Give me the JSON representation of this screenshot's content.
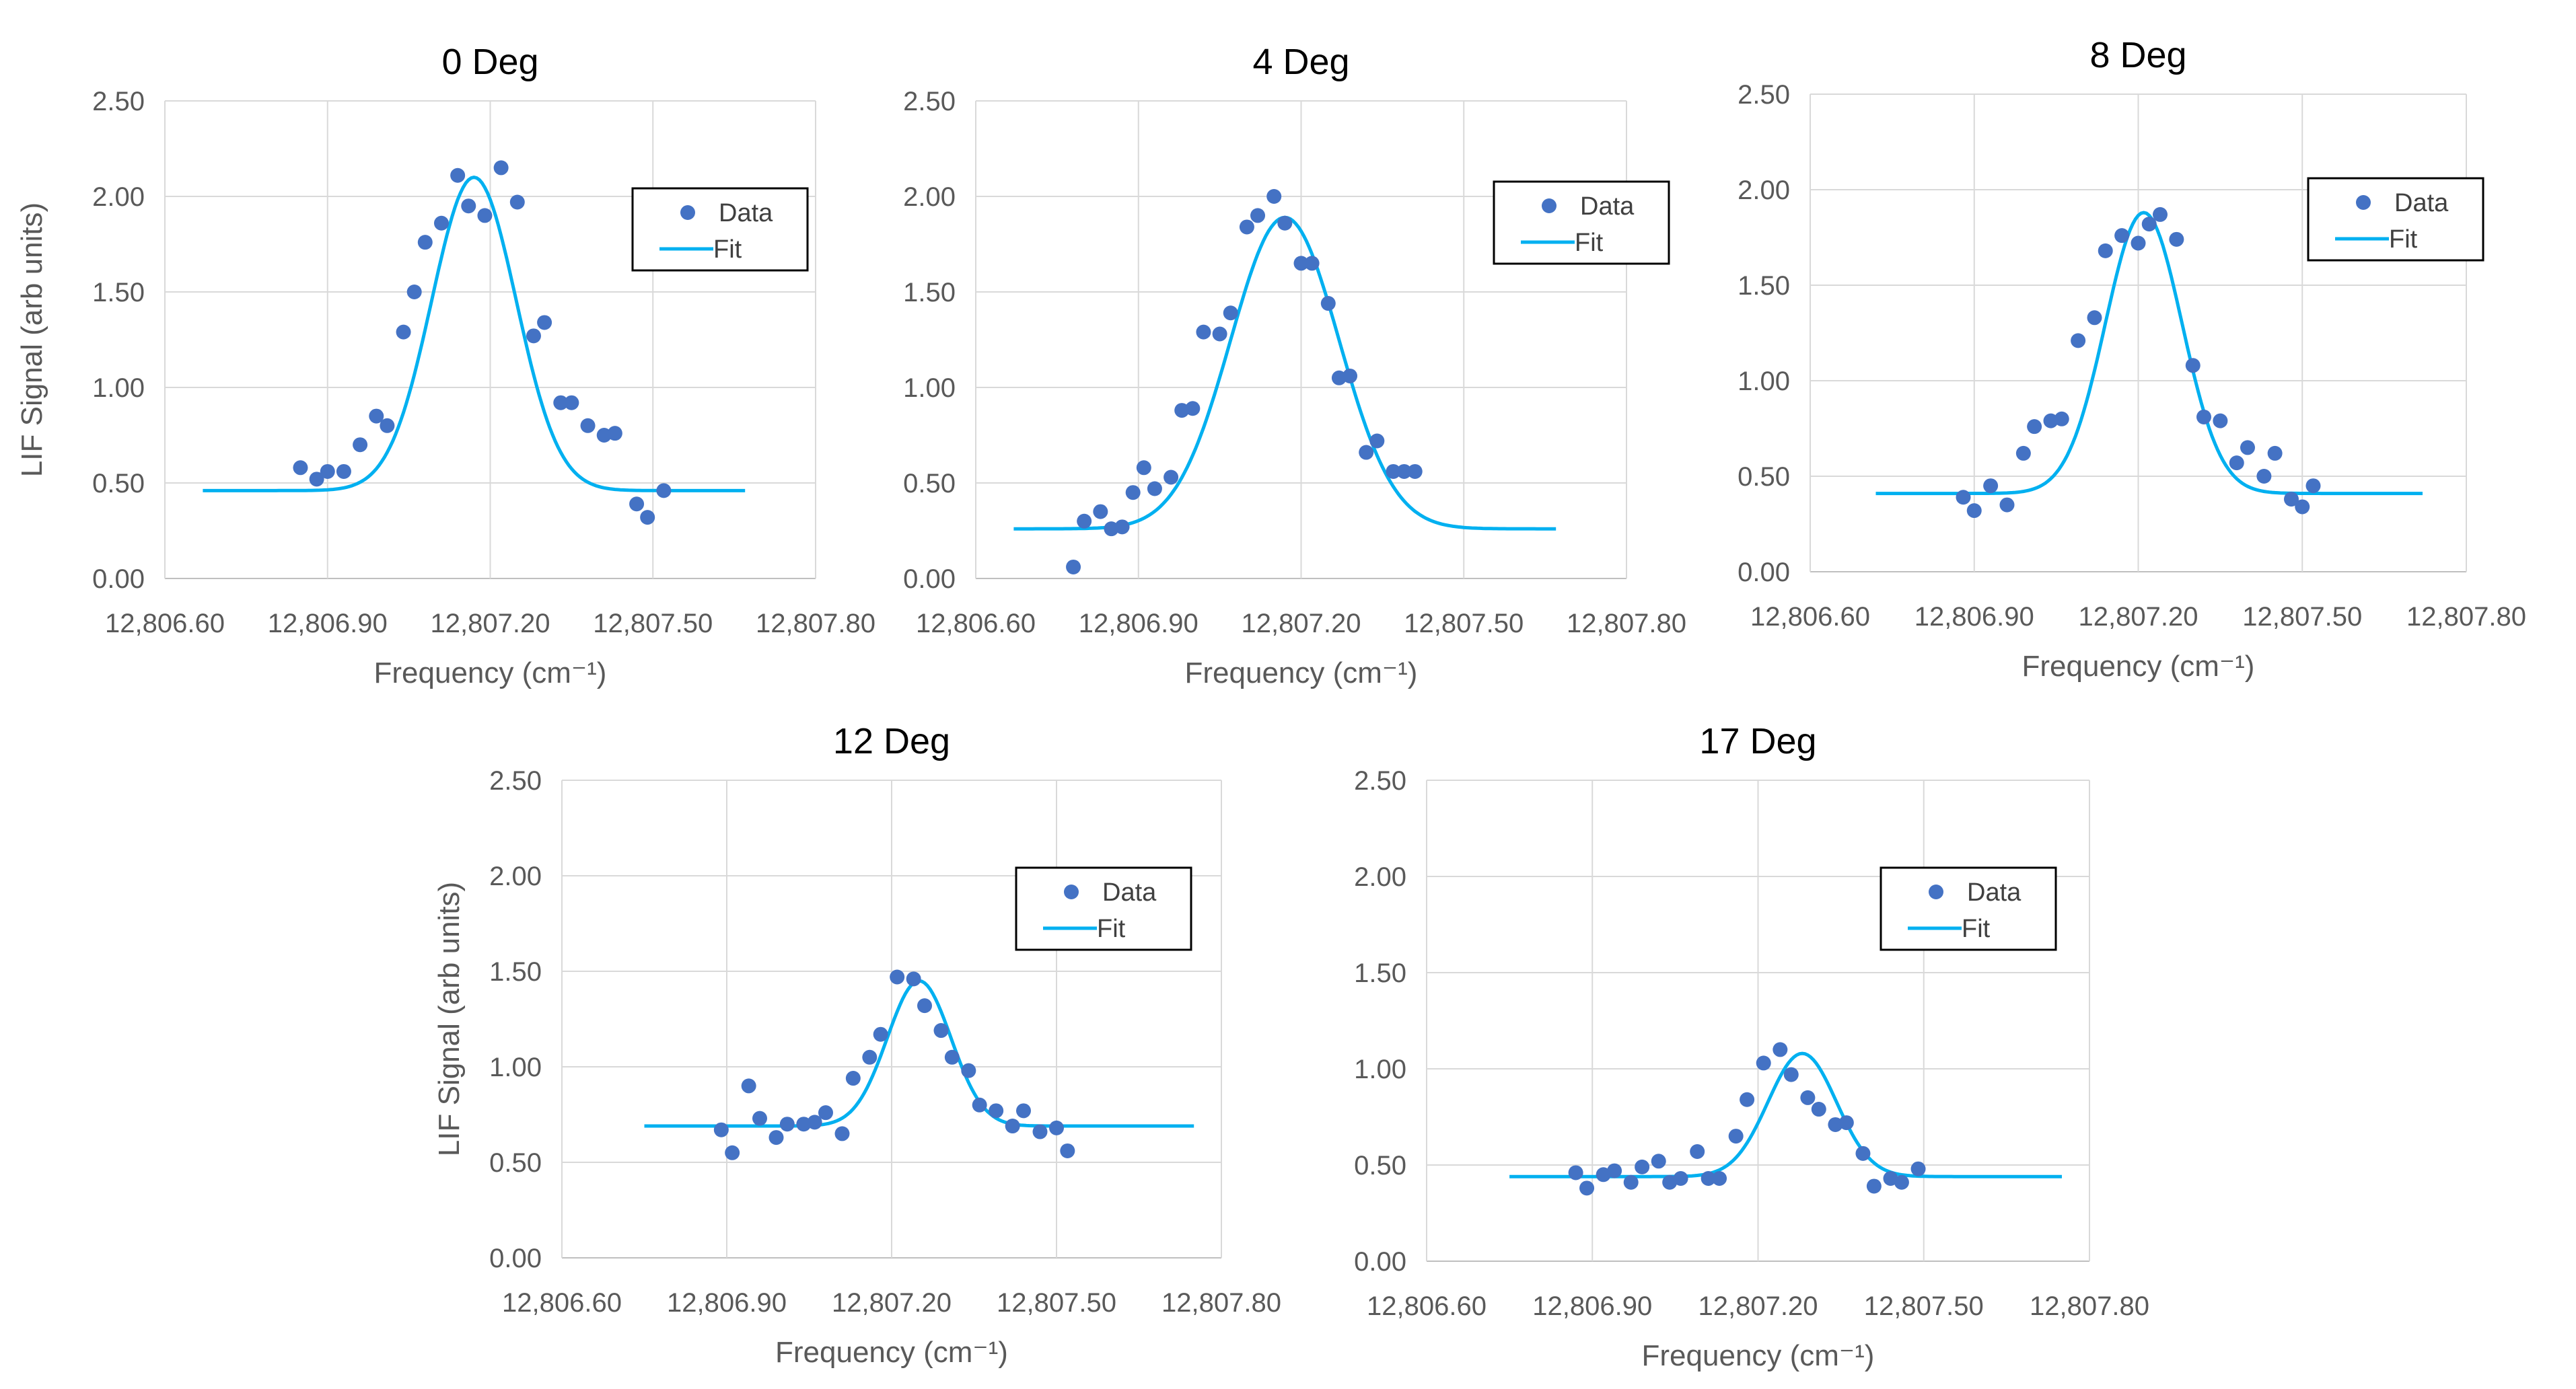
{
  "colors": {
    "data": "#4472C4",
    "fit": "#00B0F0",
    "grid": "#d9d9d9",
    "text": "#595959"
  },
  "legend": {
    "data_label": "Data",
    "fit_label": "Fit"
  },
  "chart_data": [
    {
      "type": "scatter",
      "title": "0 Deg",
      "xlabel": "Frequency (cm⁻¹)",
      "ylabel": "LIF Signal (arb units)",
      "xlim": [
        12806.6,
        12807.8
      ],
      "ylim": [
        0,
        2.5
      ],
      "xticks": [
        "12,806.60",
        "12,806.90",
        "12,807.20",
        "12,807.50",
        "12,807.80"
      ],
      "yticks": [
        "0.00",
        "0.50",
        "1.00",
        "1.50",
        "2.00",
        "2.50"
      ],
      "grid": true,
      "legend_position": "right",
      "fit": {
        "baseline": 0.46,
        "amplitude": 1.64,
        "center": 12807.17,
        "sigma": 0.078,
        "x_range": [
          12806.67,
          12807.67
        ]
      },
      "series": [
        {
          "name": "Data",
          "x": [
            12806.85,
            12806.88,
            12806.9,
            12806.93,
            12806.96,
            12806.99,
            12807.01,
            12807.04,
            12807.06,
            12807.08,
            12807.11,
            12807.14,
            12807.16,
            12807.19,
            12807.22,
            12807.25,
            12807.28,
            12807.3,
            12807.33,
            12807.35,
            12807.38,
            12807.41,
            12807.43,
            12807.47,
            12807.49,
            12807.52
          ],
          "y": [
            0.58,
            0.52,
            0.56,
            0.56,
            0.7,
            0.85,
            0.8,
            1.29,
            1.5,
            1.76,
            1.86,
            2.11,
            1.95,
            1.9,
            2.15,
            1.97,
            1.27,
            1.34,
            0.92,
            0.92,
            0.8,
            0.75,
            0.76,
            0.39,
            0.32,
            0.46
          ]
        }
      ]
    },
    {
      "type": "scatter",
      "title": "4 Deg",
      "xlabel": "Frequency (cm⁻¹)",
      "ylabel": "",
      "xlim": [
        12806.6,
        12807.8
      ],
      "ylim": [
        0,
        2.5
      ],
      "xticks": [
        "12,806.60",
        "12,806.90",
        "12,807.20",
        "12,807.50",
        "12,807.80"
      ],
      "yticks": [
        "0.00",
        "0.50",
        "1.00",
        "1.50",
        "2.00",
        "2.50"
      ],
      "grid": true,
      "legend_position": "right",
      "fit": {
        "baseline": 0.26,
        "amplitude": 1.63,
        "center": 12807.17,
        "sigma": 0.1,
        "x_range": [
          12806.67,
          12807.67
        ]
      },
      "series": [
        {
          "name": "Data",
          "x": [
            12806.78,
            12806.8,
            12806.83,
            12806.85,
            12806.87,
            12806.89,
            12806.91,
            12806.93,
            12806.96,
            12806.98,
            12807.0,
            12807.02,
            12807.05,
            12807.07,
            12807.1,
            12807.12,
            12807.15,
            12807.17,
            12807.2,
            12807.22,
            12807.25,
            12807.27,
            12807.29,
            12807.32,
            12807.34,
            12807.37,
            12807.39,
            12807.41
          ],
          "y": [
            0.06,
            0.3,
            0.35,
            0.26,
            0.27,
            0.45,
            0.58,
            0.47,
            0.53,
            0.88,
            0.89,
            1.29,
            1.28,
            1.39,
            1.84,
            1.9,
            2.0,
            1.86,
            1.65,
            1.65,
            1.44,
            1.05,
            1.06,
            0.66,
            0.72,
            0.56,
            0.56,
            0.56
          ]
        }
      ]
    },
    {
      "type": "scatter",
      "title": "8 Deg",
      "xlabel": "Frequency (cm⁻¹)",
      "ylabel": "",
      "xlim": [
        12806.6,
        12807.8
      ],
      "ylim": [
        0,
        2.5
      ],
      "xticks": [
        "12,806.60",
        "12,806.90",
        "12,807.20",
        "12,807.50",
        "12,807.80"
      ],
      "yticks": [
        "0.00",
        "0.50",
        "1.00",
        "1.50",
        "2.00",
        "2.50"
      ],
      "grid": true,
      "legend_position": "right",
      "fit": {
        "baseline": 0.41,
        "amplitude": 1.47,
        "center": 12807.21,
        "sigma": 0.07,
        "x_range": [
          12806.72,
          12807.72
        ]
      },
      "series": [
        {
          "name": "Data",
          "x": [
            12806.88,
            12806.9,
            12806.93,
            12806.96,
            12806.99,
            12807.01,
            12807.04,
            12807.06,
            12807.09,
            12807.12,
            12807.14,
            12807.17,
            12807.2,
            12807.22,
            12807.24,
            12807.27,
            12807.3,
            12807.32,
            12807.35,
            12807.38,
            12807.4,
            12807.43,
            12807.45,
            12807.48,
            12807.5,
            12807.52
          ],
          "y": [
            0.39,
            0.32,
            0.45,
            0.35,
            0.62,
            0.76,
            0.79,
            0.8,
            1.21,
            1.33,
            1.68,
            1.76,
            1.72,
            1.82,
            1.87,
            1.74,
            1.08,
            0.81,
            0.79,
            0.57,
            0.65,
            0.5,
            0.62,
            0.38,
            0.34,
            0.45
          ]
        }
      ]
    },
    {
      "type": "scatter",
      "title": "12 Deg",
      "xlabel": "Frequency (cm⁻¹)",
      "ylabel": "LIF Signal (arb units)",
      "xlim": [
        12806.6,
        12807.8
      ],
      "ylim": [
        0,
        2.5
      ],
      "xticks": [
        "12,806.60",
        "12,806.90",
        "12,807.20",
        "12,807.50",
        "12,807.80"
      ],
      "yticks": [
        "0.00",
        "0.50",
        "1.00",
        "1.50",
        "2.00",
        "2.50"
      ],
      "grid": true,
      "legend_position": "right",
      "fit": {
        "baseline": 0.69,
        "amplitude": 0.76,
        "center": 12807.25,
        "sigma": 0.058,
        "x_range": [
          12806.75,
          12807.75
        ]
      },
      "series": [
        {
          "name": "Data",
          "x": [
            12806.89,
            12806.91,
            12806.94,
            12806.96,
            12806.99,
            12807.01,
            12807.04,
            12807.06,
            12807.08,
            12807.11,
            12807.13,
            12807.16,
            12807.18,
            12807.21,
            12807.24,
            12807.26,
            12807.29,
            12807.31,
            12807.34,
            12807.36,
            12807.39,
            12807.42,
            12807.44,
            12807.47,
            12807.5,
            12807.52
          ],
          "y": [
            0.67,
            0.55,
            0.9,
            0.73,
            0.63,
            0.7,
            0.7,
            0.71,
            0.76,
            0.65,
            0.94,
            1.05,
            1.17,
            1.47,
            1.46,
            1.32,
            1.19,
            1.05,
            0.98,
            0.8,
            0.77,
            0.69,
            0.77,
            0.66,
            0.68,
            0.56
          ]
        }
      ]
    },
    {
      "type": "scatter",
      "title": "17 Deg",
      "xlabel": "Frequency (cm⁻¹)",
      "ylabel": "",
      "xlim": [
        12806.6,
        12807.8
      ],
      "ylim": [
        0,
        2.5
      ],
      "xticks": [
        "12,806.60",
        "12,806.90",
        "12,807.20",
        "12,807.50",
        "12,807.80"
      ],
      "yticks": [
        "0.00",
        "0.50",
        "1.00",
        "1.50",
        "2.00",
        "2.50"
      ],
      "grid": true,
      "legend_position": "right",
      "fit": {
        "baseline": 0.44,
        "amplitude": 0.64,
        "center": 12807.28,
        "sigma": 0.062,
        "x_range": [
          12806.75,
          12807.75
        ]
      },
      "series": [
        {
          "name": "Data",
          "x": [
            12806.87,
            12806.89,
            12806.92,
            12806.94,
            12806.97,
            12806.99,
            12807.02,
            12807.04,
            12807.06,
            12807.09,
            12807.11,
            12807.13,
            12807.16,
            12807.18,
            12807.21,
            12807.24,
            12807.26,
            12807.29,
            12807.31,
            12807.34,
            12807.36,
            12807.39,
            12807.41,
            12807.44,
            12807.46,
            12807.49
          ],
          "y": [
            0.46,
            0.38,
            0.45,
            0.47,
            0.41,
            0.49,
            0.52,
            0.41,
            0.43,
            0.57,
            0.43,
            0.43,
            0.65,
            0.84,
            1.03,
            1.1,
            0.97,
            0.85,
            0.79,
            0.71,
            0.72,
            0.56,
            0.39,
            0.43,
            0.41,
            0.48
          ]
        }
      ]
    }
  ]
}
